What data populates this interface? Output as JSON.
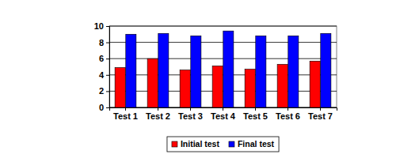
{
  "chart_data": {
    "type": "bar",
    "categories": [
      "Test 1",
      "Test 2",
      "Test 3",
      "Test 4",
      "Test 5",
      "Test 6",
      "Test 7"
    ],
    "series": [
      {
        "name": "Initial test",
        "color": "#ff0000",
        "values": [
          4.9,
          6.0,
          4.6,
          5.1,
          4.7,
          5.3,
          5.7
        ]
      },
      {
        "name": "Final test",
        "color": "#0000ff",
        "values": [
          9.0,
          9.1,
          8.8,
          9.4,
          8.8,
          8.8,
          9.1
        ]
      }
    ],
    "ylim": [
      0,
      10
    ],
    "yticks": [
      0,
      2,
      4,
      6,
      8,
      10
    ],
    "grid": true,
    "legend": "bottom"
  }
}
